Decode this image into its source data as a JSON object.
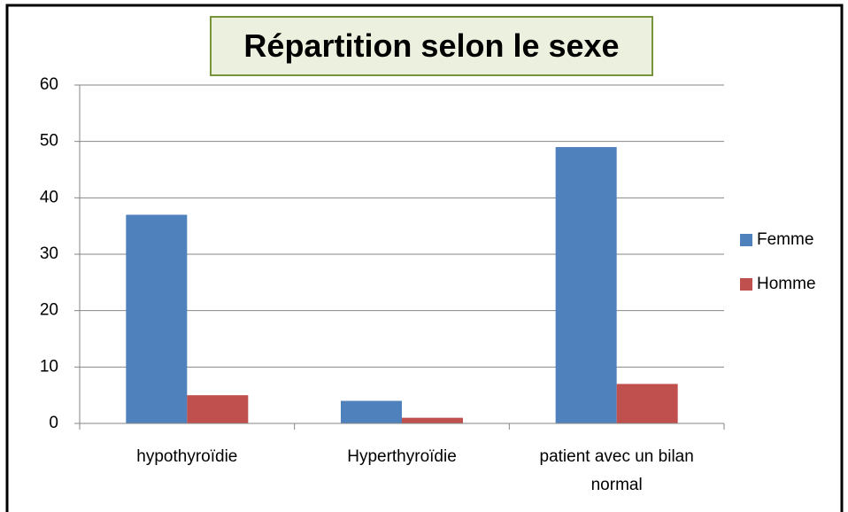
{
  "chart_data": {
    "type": "bar",
    "title": "Répartition selon le sexe",
    "categories": [
      "hypothyroïdie",
      "Hyperthyroïdie",
      "patient avec un bilan normal"
    ],
    "series": [
      {
        "name": "Femme",
        "color": "#4f81bd",
        "values": [
          37,
          4,
          49
        ]
      },
      {
        "name": "Homme",
        "color": "#c0504d",
        "values": [
          5,
          1,
          7
        ]
      }
    ],
    "ylim": [
      0,
      60
    ],
    "yticks": [
      0,
      10,
      20,
      30,
      40,
      50,
      60
    ],
    "grid": true,
    "legend": "right"
  }
}
